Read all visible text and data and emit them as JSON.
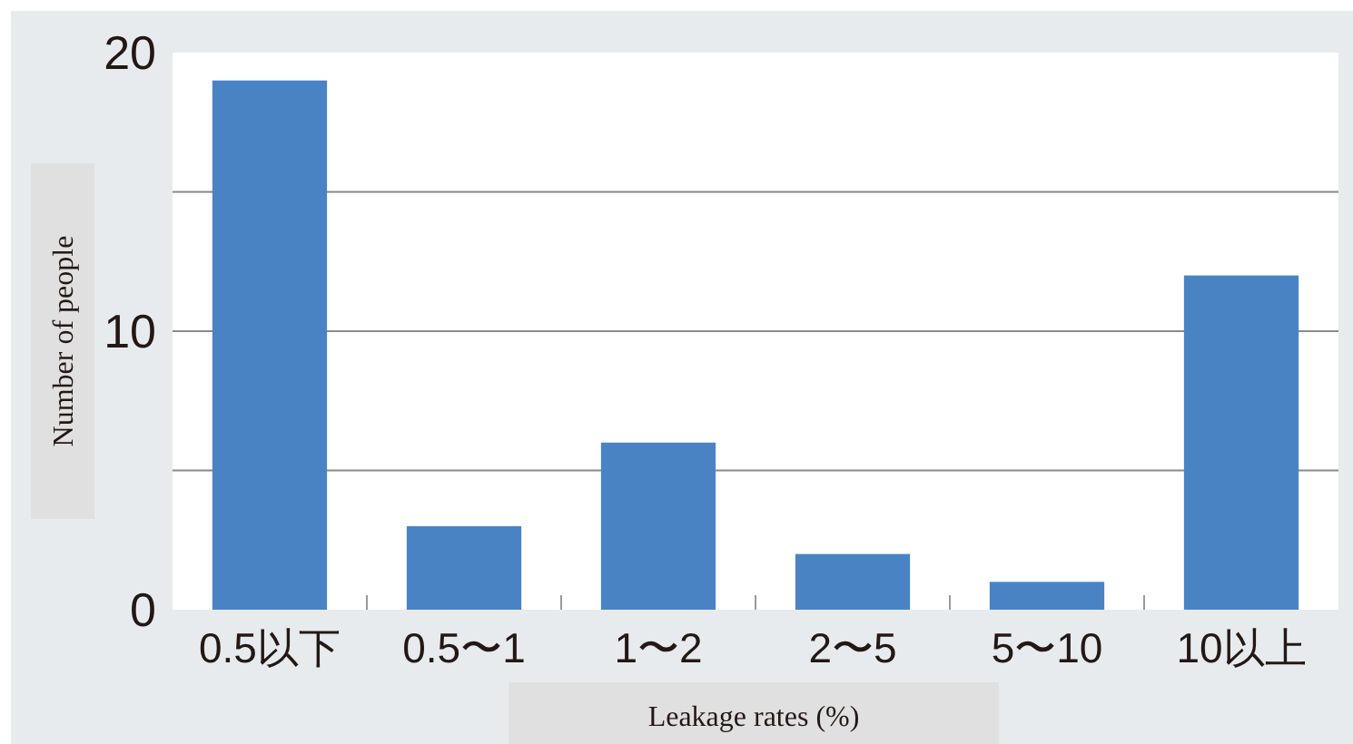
{
  "chart_data": {
    "type": "bar",
    "xlabel": "Leakage rates (%)",
    "ylabel": "Number of people",
    "categories": [
      "0.5以下",
      "0.5〜1",
      "1〜2",
      "2〜5",
      "5〜10",
      "10以上"
    ],
    "values": [
      19,
      3,
      6,
      2,
      1,
      12
    ],
    "color": "#4a83c4",
    "ylim": [
      0,
      20
    ],
    "yticks": [
      0,
      {
        "value": 5,
        "label": null
      },
      10,
      {
        "value": 15,
        "label": null
      },
      20
    ],
    "grid": "y"
  }
}
